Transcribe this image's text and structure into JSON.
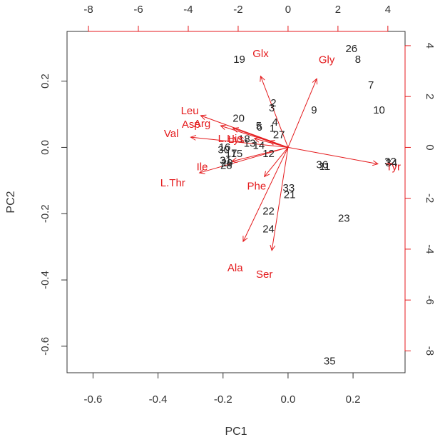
{
  "chart_data": {
    "type": "scatter",
    "subtype": "biplot",
    "xlabel": "PC1",
    "ylabel": "PC2",
    "xlim": [
      -0.68,
      0.36
    ],
    "ylim": [
      -0.68,
      0.35
    ],
    "x_ticks": [
      -0.6,
      -0.4,
      -0.2,
      0.0,
      0.2
    ],
    "x_tick_labels": [
      "-0.6",
      "-0.4",
      "-0.2",
      "0.0",
      "0.2"
    ],
    "y_ticks": [
      -0.6,
      -0.4,
      -0.2,
      0.0,
      0.2
    ],
    "y_tick_labels": [
      "-0.6",
      "-0.4",
      "-0.2",
      "0.0",
      "0.2"
    ],
    "top_ticks": [
      -8,
      -6,
      -4,
      -2,
      0,
      2,
      4
    ],
    "top_tick_labels": [
      "-8",
      "-6",
      "-4",
      "-2",
      "0",
      "2",
      "4"
    ],
    "right_ticks": [
      4,
      2,
      0,
      -2,
      -4,
      -6,
      -8
    ],
    "right_tick_labels": [
      "4",
      "2",
      "0",
      "-2",
      "-4",
      "-6",
      "-8"
    ],
    "loading_scale_factor": 0.07676,
    "grid": false,
    "colors": {
      "observations": "#222222",
      "loadings": "#e41a1c",
      "frame": "#333333"
    },
    "observations": [
      {
        "label": "19",
        "x": -0.15,
        "y": 0.265
      },
      {
        "label": "26",
        "x": 0.195,
        "y": 0.297
      },
      {
        "label": "8",
        "x": 0.215,
        "y": 0.265
      },
      {
        "label": "7",
        "x": 0.255,
        "y": 0.187
      },
      {
        "label": "2",
        "x": -0.045,
        "y": 0.133
      },
      {
        "label": "3",
        "x": -0.05,
        "y": 0.118
      },
      {
        "label": "9",
        "x": 0.08,
        "y": 0.112
      },
      {
        "label": "10",
        "x": 0.28,
        "y": 0.112
      },
      {
        "label": "20",
        "x": -0.152,
        "y": 0.087
      },
      {
        "label": "4",
        "x": -0.04,
        "y": 0.075
      },
      {
        "label": "5",
        "x": -0.09,
        "y": 0.065
      },
      {
        "label": "6",
        "x": -0.088,
        "y": 0.06
      },
      {
        "label": "1",
        "x": -0.048,
        "y": 0.057
      },
      {
        "label": "27",
        "x": -0.028,
        "y": 0.038
      },
      {
        "label": "18",
        "x": -0.135,
        "y": 0.025
      },
      {
        "label": "13",
        "x": -0.118,
        "y": 0.012
      },
      {
        "label": "14",
        "x": -0.09,
        "y": 0.005
      },
      {
        "label": "16",
        "x": -0.195,
        "y": 0.0
      },
      {
        "label": "30",
        "x": -0.198,
        "y": -0.008
      },
      {
        "label": "17",
        "x": -0.175,
        "y": -0.018
      },
      {
        "label": "15",
        "x": -0.158,
        "y": -0.02
      },
      {
        "label": "12",
        "x": -0.06,
        "y": -0.02
      },
      {
        "label": "31",
        "x": -0.192,
        "y": -0.04
      },
      {
        "label": "29",
        "x": -0.188,
        "y": -0.048
      },
      {
        "label": "28",
        "x": -0.19,
        "y": -0.055
      },
      {
        "label": "36",
        "x": 0.105,
        "y": -0.053
      },
      {
        "label": "11",
        "x": 0.113,
        "y": -0.058
      },
      {
        "label": "32",
        "x": 0.315,
        "y": -0.043
      },
      {
        "label": "34",
        "x": 0.318,
        "y": -0.048
      },
      {
        "label": "33",
        "x": 0.002,
        "y": -0.123
      },
      {
        "label": "21",
        "x": 0.005,
        "y": -0.143
      },
      {
        "label": "22",
        "x": -0.06,
        "y": -0.193
      },
      {
        "label": "23",
        "x": 0.172,
        "y": -0.215
      },
      {
        "label": "24",
        "x": -0.06,
        "y": -0.247
      },
      {
        "label": "35",
        "x": 0.128,
        "y": -0.645
      }
    ],
    "loadings": [
      {
        "label": "Glx",
        "x": -1.1,
        "y": 2.8,
        "label_x": -1.1,
        "label_y": 3.67
      },
      {
        "label": "Gly",
        "x": 1.15,
        "y": 2.7,
        "label_x": 1.55,
        "label_y": 3.43
      },
      {
        "label": "Leu",
        "x": -3.5,
        "y": 1.25,
        "label_x": -3.94,
        "label_y": 1.43
      },
      {
        "label": "Asp",
        "x": -2.7,
        "y": 0.85,
        "label_x": -3.89,
        "label_y": 0.9
      },
      {
        "label": "Arg",
        "x": -2.2,
        "y": 0.75,
        "label_x": -3.44,
        "label_y": 0.92
      },
      {
        "label": "Val",
        "x": -3.9,
        "y": 0.4,
        "label_x": -4.68,
        "label_y": 0.53
      },
      {
        "label": "L.His",
        "x": -1.35,
        "y": 0.35,
        "label_x": -2.32,
        "label_y": 0.34
      },
      {
        "label": "Lys",
        "x": -0.75,
        "y": 0.25,
        "label_x": -2.08,
        "label_y": 0.3
      },
      {
        "label": "Ile",
        "x": -2.25,
        "y": -0.55,
        "label_x": -3.44,
        "label_y": -0.78
      },
      {
        "label": "L.Thr",
        "x": -3.55,
        "y": -1.0,
        "label_x": -4.62,
        "label_y": -1.4
      },
      {
        "label": "Phe",
        "x": -0.95,
        "y": -1.15,
        "label_x": -1.26,
        "label_y": -1.53
      },
      {
        "label": "Tyr",
        "x": 3.6,
        "y": -0.65,
        "label_x": 4.22,
        "label_y": -0.78
      },
      {
        "label": "Ala",
        "x": -1.8,
        "y": -3.7,
        "label_x": -2.12,
        "label_y": -4.74
      },
      {
        "label": "Ser",
        "x": -0.65,
        "y": -4.05,
        "label_x": -0.95,
        "label_y": -5.0
      }
    ]
  }
}
